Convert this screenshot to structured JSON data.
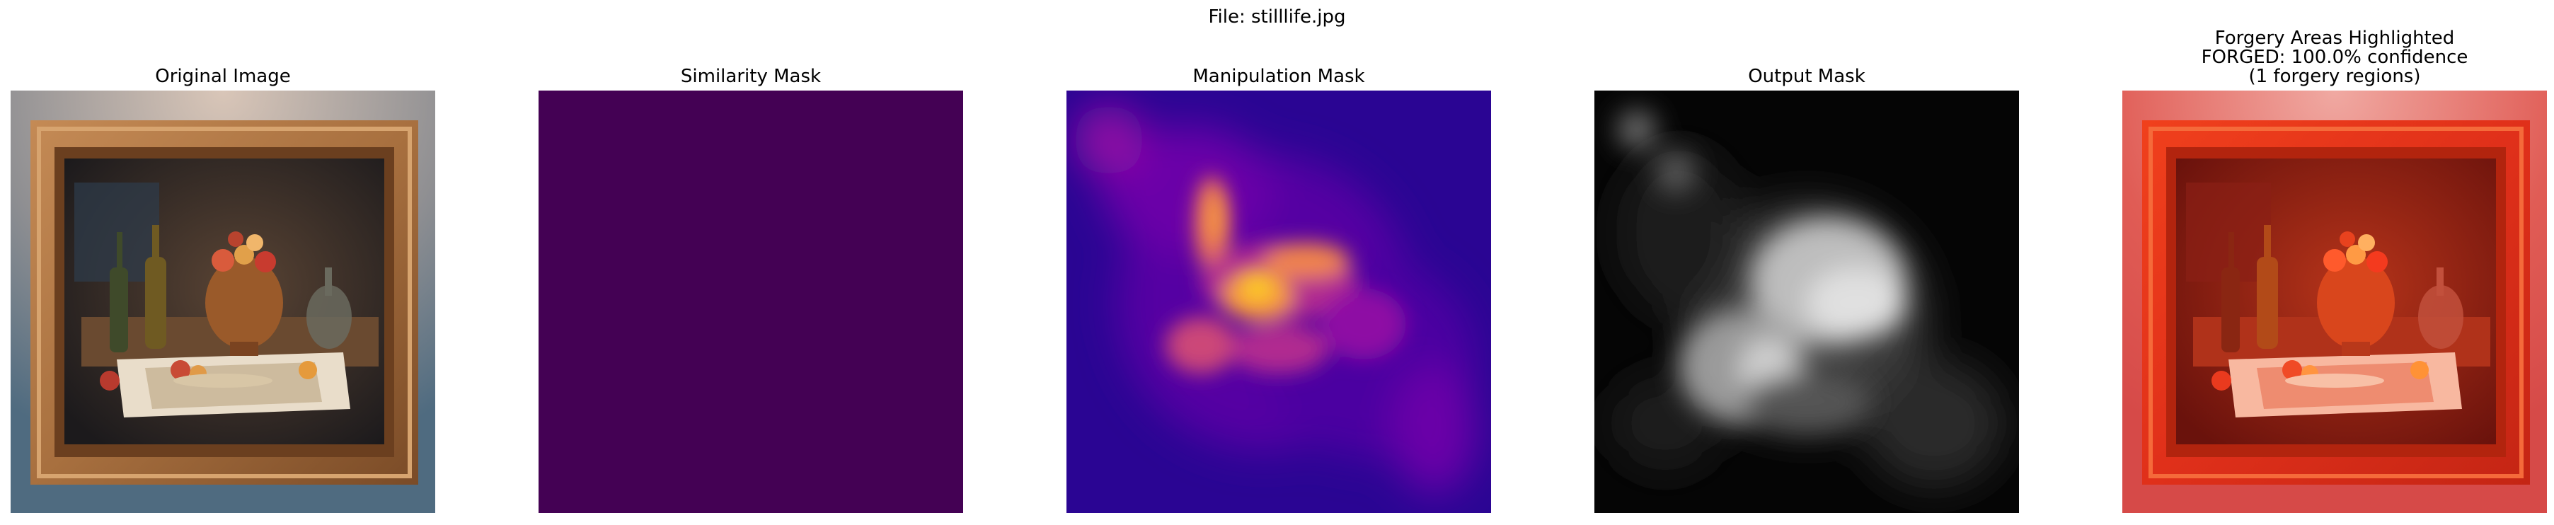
{
  "figure": {
    "suptitle": "File: stilllife.jpg"
  },
  "panels": [
    {
      "id": "original",
      "title_lines": [
        "Original Image"
      ]
    },
    {
      "id": "similarity",
      "title_lines": [
        "Similarity Mask"
      ],
      "colormap": "viridis",
      "fill": "#440154"
    },
    {
      "id": "manipulation",
      "title_lines": [
        "Manipulation Mask"
      ],
      "colormap": "plasma"
    },
    {
      "id": "output",
      "title_lines": [
        "Output Mask"
      ],
      "colormap": "gray"
    },
    {
      "id": "highlight",
      "title_lines": [
        "Forgery Areas Highlighted",
        "FORGED: 100.0% confidence",
        "(1 forgery regions)"
      ]
    }
  ]
}
